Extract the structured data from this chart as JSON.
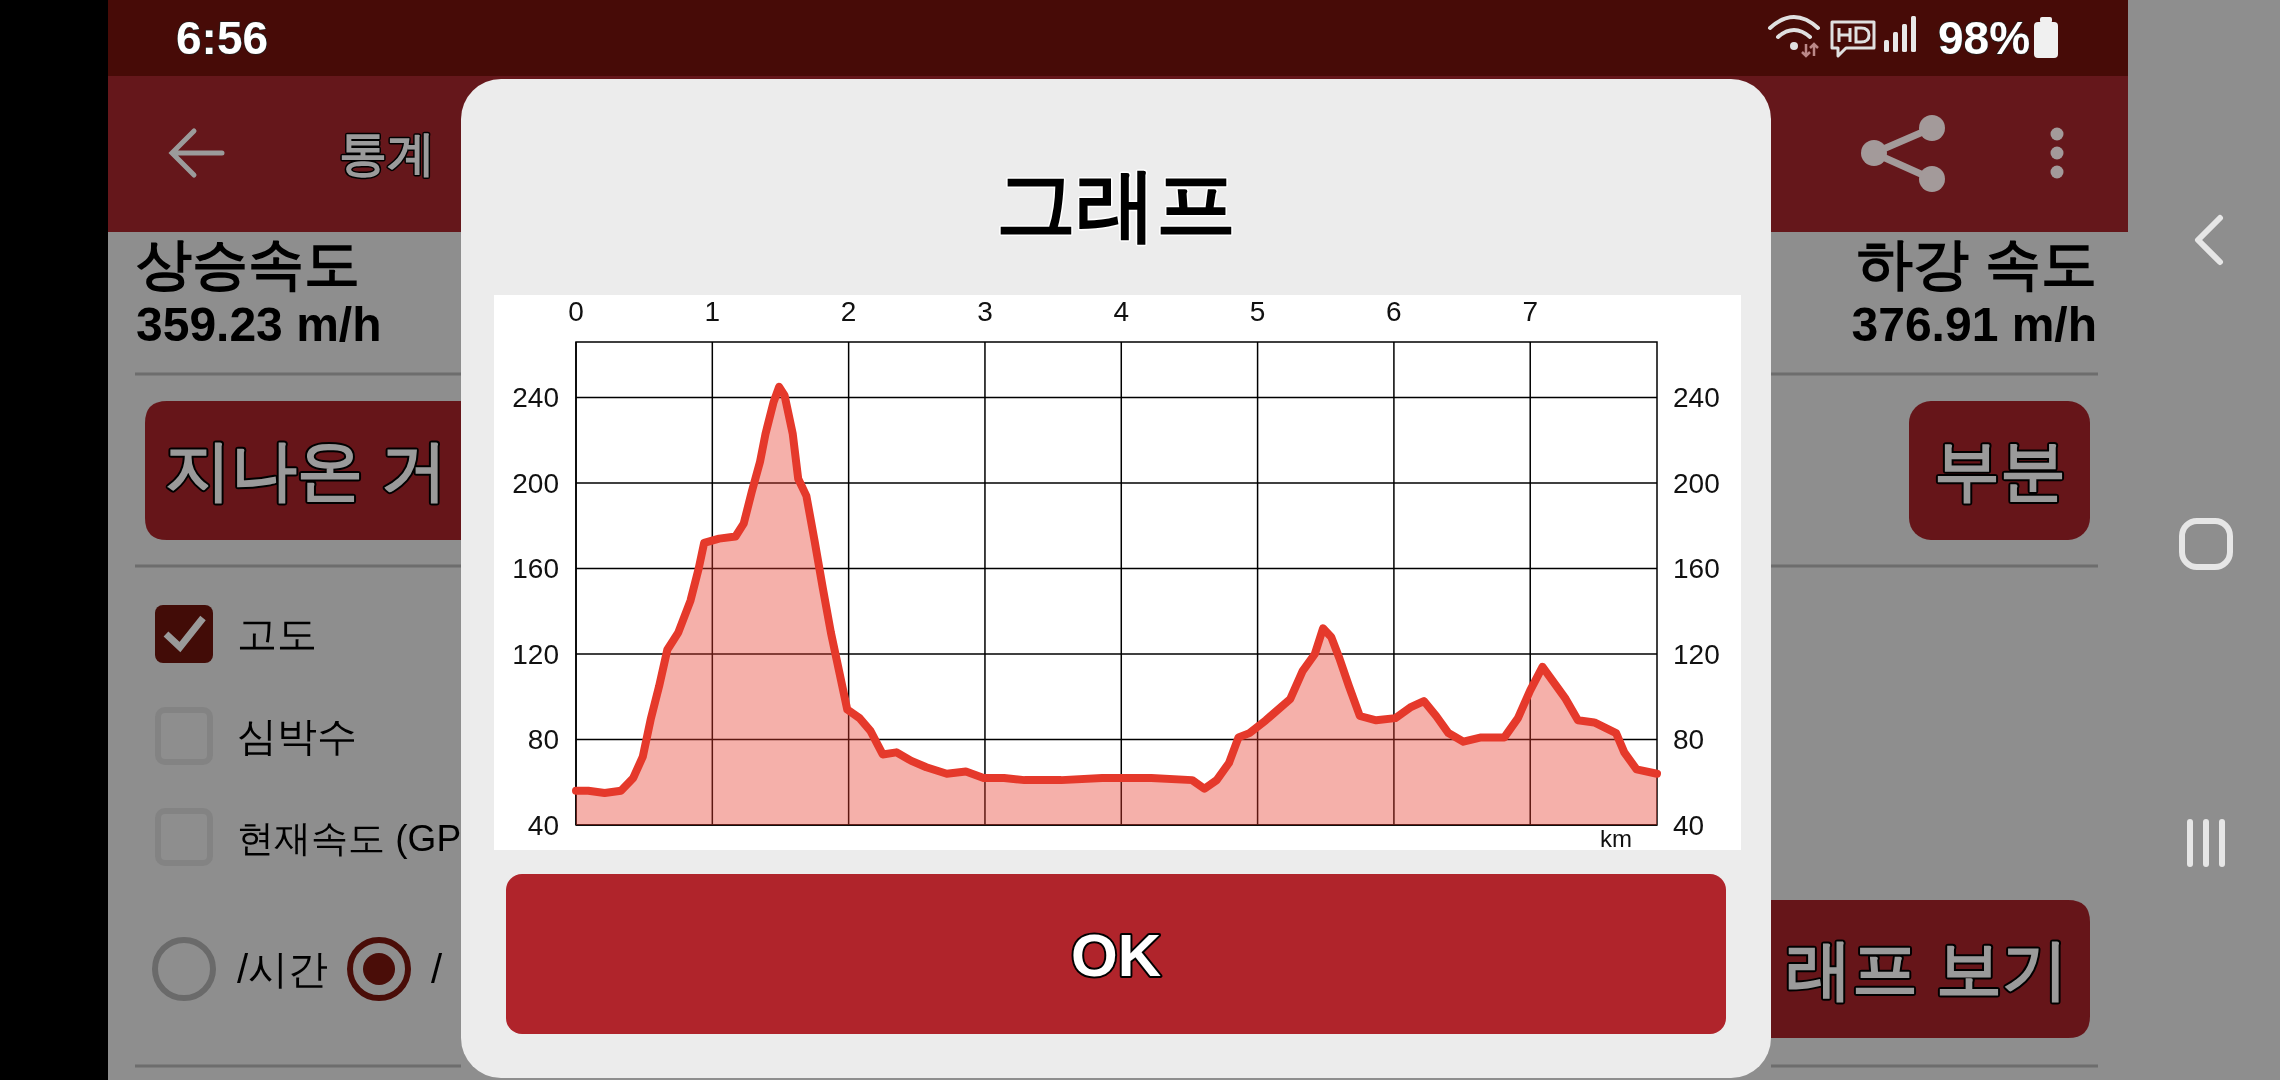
{
  "chart_data": [
    {
      "type": "other",
      "annotations": [
        "6:56",
        "98%",
        "통계",
        "상승속도",
        "359.23 m/h",
        "하강 속도",
        "376.91 m/h",
        "지나온 거",
        "부분",
        "고도",
        "심박수",
        "현재속도 (GP",
        "/시간",
        "/",
        "래프 보기"
      ]
    },
    {
      "type": "area",
      "title": "그래프",
      "xlabel": "km",
      "xlim": [
        0,
        7.93
      ],
      "xticks": [
        0,
        1,
        2,
        3,
        4,
        5,
        6,
        7
      ],
      "ylim": [
        40,
        266
      ],
      "yticks": [
        40,
        80,
        120,
        160,
        200,
        240
      ],
      "y2lim": [
        40,
        266
      ],
      "y2ticks": [
        40,
        80,
        120,
        160,
        200,
        240
      ],
      "grid": true,
      "annotations": [
        "OK"
      ],
      "series": [
        {
          "color": "#e5392b",
          "x": [
            0,
            0.09,
            0.21,
            0.33,
            0.42,
            0.49,
            0.55,
            0.61,
            0.67,
            0.75,
            0.84,
            0.9,
            0.94,
            1.05,
            1.17,
            1.23,
            1.29,
            1.35,
            1.39,
            1.45,
            1.49,
            1.53,
            1.59,
            1.63,
            1.69,
            1.75,
            1.81,
            1.87,
            1.93,
            1.99,
            2.08,
            2.16,
            2.25,
            2.35,
            2.46,
            2.57,
            2.72,
            2.86,
            2.99,
            3.14,
            3.29,
            3.56,
            3.86,
            4.04,
            4.22,
            4.52,
            4.61,
            4.7,
            4.79,
            4.86,
            4.94,
            5.06,
            5.24,
            5.33,
            5.42,
            5.48,
            5.54,
            5.6,
            5.67,
            5.75,
            5.87,
            6.01,
            6.12,
            6.22,
            6.31,
            6.4,
            6.51,
            6.64,
            6.81,
            6.91,
            7.0,
            7.09,
            7.17,
            7.26,
            7.35,
            7.47,
            7.63,
            7.69,
            7.78,
            7.93
          ],
          "values": [
            56,
            56,
            55,
            56,
            62,
            72,
            90,
            105,
            122,
            130,
            145,
            160,
            172,
            174,
            175,
            181,
            196,
            210,
            223,
            238,
            245,
            241,
            223,
            202,
            194,
            173,
            151,
            130,
            112,
            94,
            90,
            84,
            73,
            74,
            70,
            67,
            64,
            65,
            62,
            62,
            61,
            61,
            62,
            62,
            62,
            61,
            57,
            61,
            69,
            81,
            83,
            89,
            99,
            112,
            120,
            132,
            128,
            118,
            105,
            91,
            89,
            90,
            95,
            98,
            91,
            83,
            79,
            81,
            81,
            90,
            103,
            114,
            107,
            99,
            89,
            88,
            83,
            74,
            66,
            64
          ]
        }
      ]
    }
  ]
}
